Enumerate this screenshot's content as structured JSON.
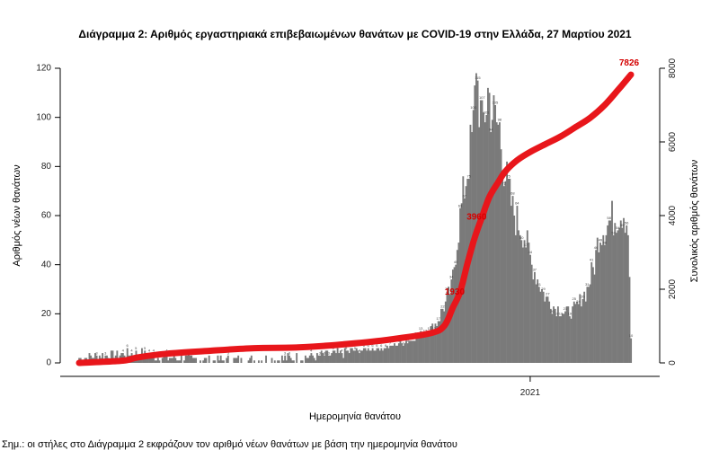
{
  "title": "Διάγραμμα 2: Αριθμός εργαστηριακά επιβεβαιωμένων θανάτων με COVID-19 στην Ελλάδα, 27 Μαρτίου 2021",
  "note": "Σημ.: οι στήλες στο Διάγραμμα 2 εκφράζουν τον αριθμό νέων θανάτων με βάση την ημερομηνία θανάτου",
  "colors": {
    "bars": "#7a7a7a",
    "cumulative_line": "#e8161b",
    "annotation": "#d40000"
  },
  "chart_data": {
    "type": "bar",
    "title": "Διάγραμμα 2: Αριθμός εργαστηριακά επιβεβαιωμένων θανάτων με COVID-19 στην Ελλάδα, 27 Μαρτίου 2021",
    "xlabel": "Ημερομηνία θανάτου",
    "ylabel": "Αριθμός νέων θανάτων",
    "y2label": "Συνολικός αριθμός θανάτων",
    "ylim": [
      0,
      120
    ],
    "y2lim": [
      0,
      8000
    ],
    "yticks": [
      0,
      20,
      40,
      60,
      80,
      100,
      120
    ],
    "y2ticks": [
      0,
      2000,
      4000,
      6000,
      8000
    ],
    "x_tick_labels": [
      {
        "label": "2021",
        "day_index": 309
      }
    ],
    "series": [
      {
        "name": "Αριθμός νέων θανάτων",
        "kind": "bar",
        "anchors": [
          [
            0,
            2
          ],
          [
            20,
            3
          ],
          [
            40,
            4
          ],
          [
            60,
            2
          ],
          [
            90,
            1
          ],
          [
            120,
            1
          ],
          [
            150,
            2
          ],
          [
            170,
            3
          ],
          [
            190,
            5
          ],
          [
            210,
            6
          ],
          [
            230,
            10
          ],
          [
            245,
            16
          ],
          [
            255,
            30
          ],
          [
            260,
            55
          ],
          [
            265,
            75
          ],
          [
            270,
            95
          ],
          [
            272,
            118
          ],
          [
            276,
            95
          ],
          [
            280,
            110
          ],
          [
            284,
            100
          ],
          [
            288,
            95
          ],
          [
            291,
            80
          ],
          [
            294,
            70
          ],
          [
            297,
            62
          ],
          [
            300,
            58
          ],
          [
            305,
            52
          ],
          [
            310,
            40
          ],
          [
            318,
            28
          ],
          [
            325,
            23
          ],
          [
            333,
            20
          ],
          [
            340,
            22
          ],
          [
            348,
            30
          ],
          [
            353,
            40
          ],
          [
            356,
            52
          ],
          [
            360,
            55
          ],
          [
            364,
            58
          ],
          [
            368,
            60
          ],
          [
            373,
            62
          ],
          [
            376,
            55
          ],
          [
            378,
            10
          ]
        ],
        "peak_day_index": 272
      },
      {
        "name": "Συνολικός αριθμός θανάτων",
        "kind": "line",
        "axis": "secondary",
        "points": [
          [
            0,
            0
          ],
          [
            30,
            60
          ],
          [
            40,
            150
          ],
          [
            60,
            250
          ],
          [
            90,
            330
          ],
          [
            120,
            400
          ],
          [
            150,
            420
          ],
          [
            180,
            500
          ],
          [
            210,
            620
          ],
          [
            240,
            800
          ],
          [
            250,
            1000
          ],
          [
            256,
            1500
          ],
          [
            261,
            1930
          ],
          [
            266,
            2700
          ],
          [
            271,
            3400
          ],
          [
            276,
            3960
          ],
          [
            281,
            4500
          ],
          [
            287,
            4900
          ],
          [
            292,
            5200
          ],
          [
            300,
            5500
          ],
          [
            310,
            5750
          ],
          [
            320,
            5950
          ],
          [
            330,
            6150
          ],
          [
            340,
            6400
          ],
          [
            350,
            6650
          ],
          [
            360,
            7000
          ],
          [
            370,
            7450
          ],
          [
            378,
            7826
          ]
        ],
        "annotations": [
          {
            "day_index": 261,
            "value": 1930,
            "label": "1930"
          },
          {
            "day_index": 276,
            "value": 3960,
            "label": "3960"
          },
          {
            "day_index": 378,
            "value": 7826,
            "label": "7826"
          }
        ]
      }
    ],
    "grid": false,
    "legend": "none"
  }
}
